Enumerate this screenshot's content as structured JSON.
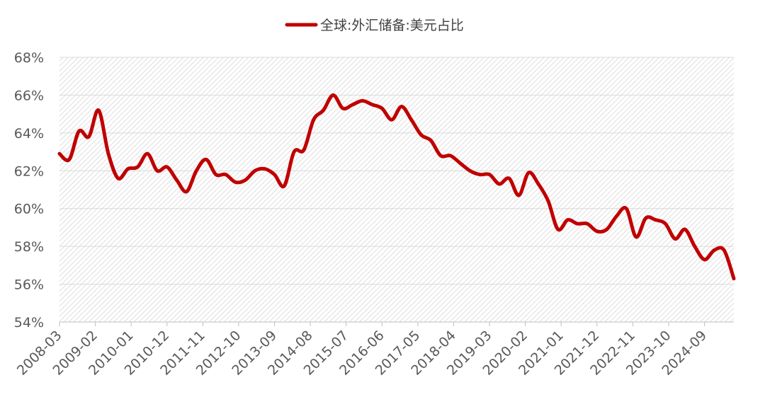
{
  "chart_data": {
    "type": "line",
    "legend": {
      "position": "top",
      "color": "#C00000"
    },
    "series": [
      {
        "name": "全球:外汇储备:美元占比",
        "color": "#C00000",
        "points": [
          [
            "2008-03",
            62.9
          ],
          [
            "2008-06",
            62.6
          ],
          [
            "2008-09",
            64.1
          ],
          [
            "2008-12",
            63.8
          ],
          [
            "2009-03",
            65.2
          ],
          [
            "2009-06",
            62.9
          ],
          [
            "2009-09",
            61.6
          ],
          [
            "2009-12",
            62.1
          ],
          [
            "2010-03",
            62.2
          ],
          [
            "2010-06",
            62.9
          ],
          [
            "2010-09",
            62.0
          ],
          [
            "2010-12",
            62.2
          ],
          [
            "2011-03",
            61.5
          ],
          [
            "2011-06",
            60.9
          ],
          [
            "2011-09",
            62.0
          ],
          [
            "2011-12",
            62.6
          ],
          [
            "2012-03",
            61.8
          ],
          [
            "2012-06",
            61.8
          ],
          [
            "2012-09",
            61.4
          ],
          [
            "2012-12",
            61.5
          ],
          [
            "2013-03",
            62.0
          ],
          [
            "2013-06",
            62.1
          ],
          [
            "2013-09",
            61.8
          ],
          [
            "2013-12",
            61.2
          ],
          [
            "2014-03",
            63.0
          ],
          [
            "2014-06",
            63.1
          ],
          [
            "2014-09",
            64.7
          ],
          [
            "2014-12",
            65.2
          ],
          [
            "2015-03",
            66.0
          ],
          [
            "2015-06",
            65.3
          ],
          [
            "2015-09",
            65.5
          ],
          [
            "2015-12",
            65.7
          ],
          [
            "2016-03",
            65.5
          ],
          [
            "2016-06",
            65.3
          ],
          [
            "2016-09",
            64.7
          ],
          [
            "2016-12",
            65.4
          ],
          [
            "2017-03",
            64.7
          ],
          [
            "2017-06",
            63.9
          ],
          [
            "2017-09",
            63.6
          ],
          [
            "2017-12",
            62.8
          ],
          [
            "2018-03",
            62.8
          ],
          [
            "2018-06",
            62.4
          ],
          [
            "2018-09",
            62.0
          ],
          [
            "2018-12",
            61.8
          ],
          [
            "2019-03",
            61.8
          ],
          [
            "2019-06",
            61.3
          ],
          [
            "2019-09",
            61.6
          ],
          [
            "2019-12",
            60.7
          ],
          [
            "2020-03",
            61.9
          ],
          [
            "2020-06",
            61.3
          ],
          [
            "2020-09",
            60.4
          ],
          [
            "2020-12",
            58.9
          ],
          [
            "2021-03",
            59.4
          ],
          [
            "2021-06",
            59.2
          ],
          [
            "2021-09",
            59.2
          ],
          [
            "2021-12",
            58.8
          ],
          [
            "2022-03",
            58.9
          ],
          [
            "2022-06",
            59.6
          ],
          [
            "2022-09",
            60.0
          ],
          [
            "2022-12",
            58.5
          ],
          [
            "2023-03",
            59.5
          ],
          [
            "2023-06",
            59.4
          ],
          [
            "2023-09",
            59.2
          ],
          [
            "2023-12",
            58.4
          ],
          [
            "2024-03",
            58.9
          ],
          [
            "2024-06",
            58.0
          ],
          [
            "2024-09",
            57.3
          ],
          [
            "2024-12",
            57.8
          ],
          [
            "2025-03",
            57.8
          ],
          [
            "2025-06",
            56.3
          ]
        ]
      }
    ],
    "x_tick_labels": [
      "2008-03",
      "2009-02",
      "2010-01",
      "2010-12",
      "2011-11",
      "2012-10",
      "2013-09",
      "2014-08",
      "2015-07",
      "2016-06",
      "2017-05",
      "2018-04",
      "2019-03",
      "2020-02",
      "2021-01",
      "2021-12",
      "2022-11",
      "2023-10",
      "2024-09"
    ],
    "x_range": [
      "2008-03",
      "2025-06"
    ],
    "y_tick_labels": [
      "54%",
      "56%",
      "58%",
      "60%",
      "62%",
      "64%",
      "66%",
      "68%"
    ],
    "ylim": [
      54,
      68
    ],
    "y_unit": "%",
    "grid": true,
    "plot_background": "hatched-light-gray"
  }
}
